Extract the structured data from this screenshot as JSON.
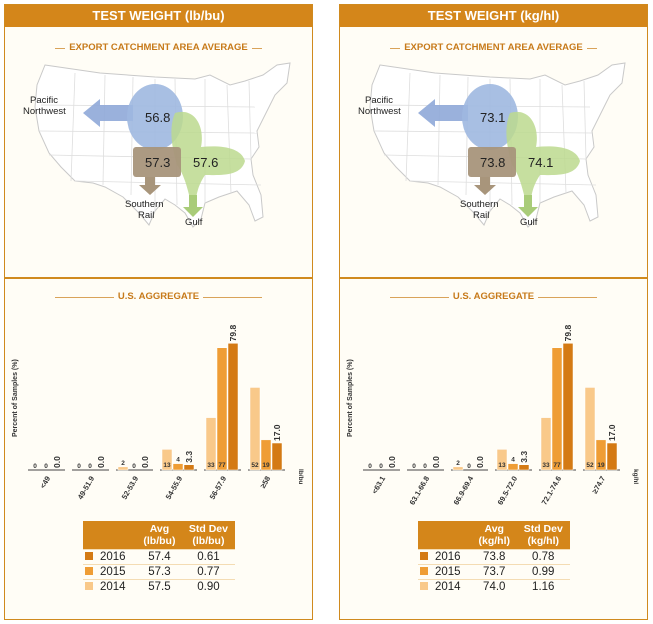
{
  "panels": [
    {
      "title": "TEST WEIGHT (lb/bu)",
      "map": {
        "title": "EXPORT CATCHMENT AREA AVERAGE",
        "pnw_label_1": "Pacific",
        "pnw_label_2": "Northwest",
        "pnw_value": "56.8",
        "rail_value": "57.3",
        "gulf_value": "57.6",
        "rail_label_1": "Southern",
        "rail_label_2": "Rail",
        "gulf_label": "Gulf"
      },
      "chart_title": "U.S. AGGREGATE",
      "chart_data": {
        "type": "bar",
        "ylabel": "Percent of Samples (%)",
        "unit": "lb/bu",
        "categories": [
          "<49",
          "49-51.9",
          "52-53.9",
          "54-55.9",
          "56-57.9",
          "≥58"
        ],
        "series": [
          {
            "name": "2014",
            "values": [
              0,
              0,
              2,
              13,
              33,
              52
            ],
            "labels": [
              "0",
              "0",
              "2",
              "13",
              "33",
              "52"
            ]
          },
          {
            "name": "2015",
            "values": [
              0,
              0,
              0,
              4,
              77,
              19
            ],
            "labels": [
              "0",
              "0",
              "0",
              "4",
              "77",
              "19"
            ]
          },
          {
            "name": "2016",
            "values": [
              0.0,
              0.0,
              0.0,
              3.3,
              79.8,
              17.0
            ],
            "labels": [
              "0.0",
              "0.0",
              "0.0",
              "3.3",
              "79.8",
              "17.0"
            ]
          }
        ]
      },
      "table": {
        "h_avg_1": "Avg",
        "h_avg_2": "(lb/bu)",
        "h_sd_1": "Std Dev",
        "h_sd_2": "(lb/bu)",
        "rows": [
          {
            "year": "2016",
            "avg": "57.4",
            "sd": "0.61"
          },
          {
            "year": "2015",
            "avg": "57.3",
            "sd": "0.77"
          },
          {
            "year": "2014",
            "avg": "57.5",
            "sd": "0.90"
          }
        ]
      }
    },
    {
      "title": "TEST WEIGHT (kg/hl)",
      "map": {
        "title": "EXPORT CATCHMENT AREA AVERAGE",
        "pnw_label_1": "Pacific",
        "pnw_label_2": "Northwest",
        "pnw_value": "73.1",
        "rail_value": "73.8",
        "gulf_value": "74.1",
        "rail_label_1": "Southern",
        "rail_label_2": "Rail",
        "gulf_label": "Gulf"
      },
      "chart_title": "U.S. AGGREGATE",
      "chart_data": {
        "type": "bar",
        "ylabel": "Percent of Samples (%)",
        "unit": "kg/hl",
        "categories": [
          "<63.1",
          "63.1-66.8",
          "66.9-69.4",
          "69.5-72.0",
          "72.1-74.6",
          "≥74.7"
        ],
        "series": [
          {
            "name": "2014",
            "values": [
              0,
              0,
              2,
              13,
              33,
              52
            ],
            "labels": [
              "0",
              "0",
              "2",
              "13",
              "33",
              "52"
            ]
          },
          {
            "name": "2015",
            "values": [
              0,
              0,
              0,
              4,
              77,
              19
            ],
            "labels": [
              "0",
              "0",
              "0",
              "4",
              "77",
              "19"
            ]
          },
          {
            "name": "2016",
            "values": [
              0.0,
              0.0,
              0.0,
              3.3,
              79.8,
              17.0
            ],
            "labels": [
              "0.0",
              "0.0",
              "0.0",
              "3.3",
              "79.8",
              "17.0"
            ]
          }
        ]
      },
      "table": {
        "h_avg_1": "Avg",
        "h_avg_2": "(kg/hl)",
        "h_sd_1": "Std Dev",
        "h_sd_2": "(kg/hl)",
        "rows": [
          {
            "year": "2016",
            "avg": "73.8",
            "sd": "0.78"
          },
          {
            "year": "2015",
            "avg": "73.7",
            "sd": "0.99"
          },
          {
            "year": "2014",
            "avg": "74.0",
            "sd": "1.16"
          }
        ]
      }
    }
  ],
  "colors": {
    "accent": "#d4861a",
    "y2014": "#f9c98a",
    "y2015": "#ef9d35",
    "y2016": "#d47a14",
    "pnw": "#9fb8e0",
    "rail": "#a8957b",
    "gulf": "#bcd98e"
  }
}
